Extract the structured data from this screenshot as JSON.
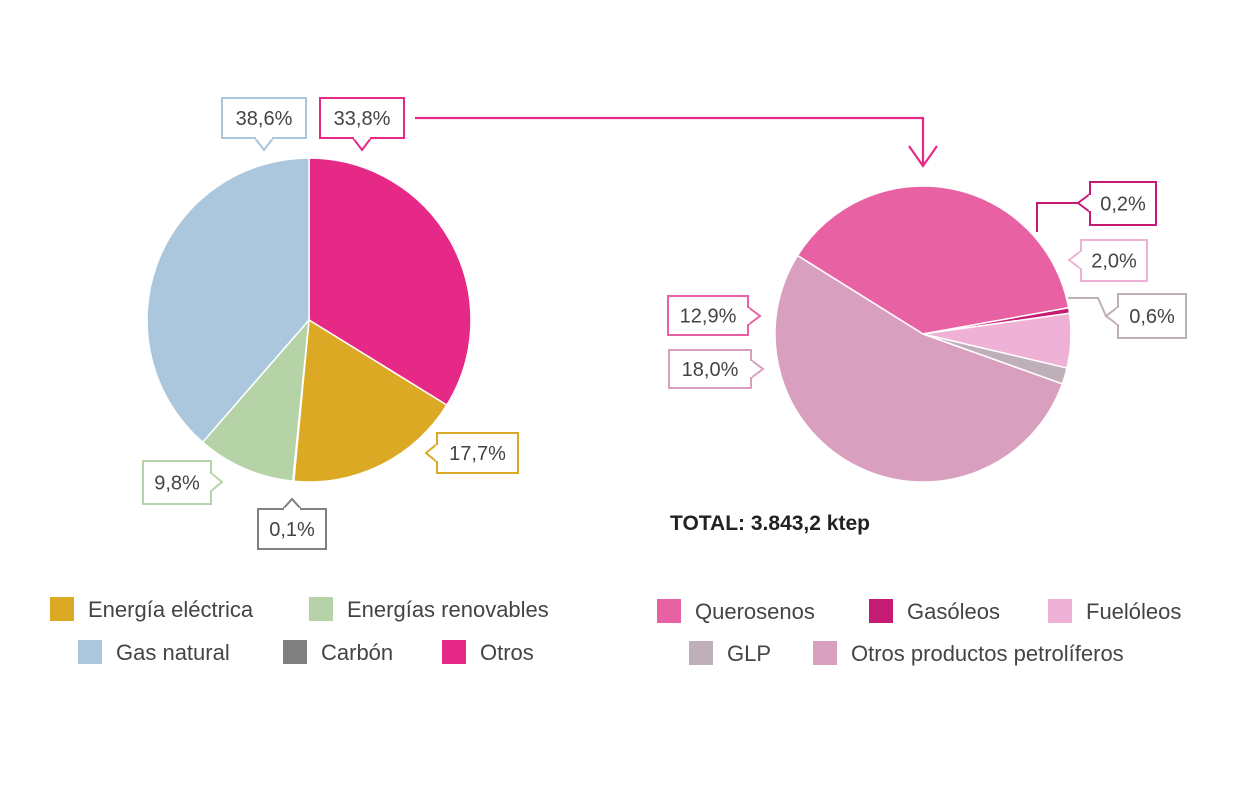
{
  "chart_data": [
    {
      "type": "pie",
      "categories": [
        "Otros",
        "Energía eléctrica",
        "Carbón",
        "Energías renovables",
        "Gas natural"
      ],
      "values": [
        33.8,
        17.7,
        0.1,
        9.8,
        38.6
      ],
      "labels": [
        "33,8%",
        "17,7%",
        "0,1%",
        "9,8%",
        "38,6%"
      ],
      "colors": [
        "#e62987",
        "#dba924",
        "#808080",
        "#b6d3a8",
        "#abc7dd"
      ],
      "legend": {
        "placement": "bottom",
        "rows": [
          [
            {
              "label": "Energía eléctrica",
              "color": "#dba924"
            },
            {
              "label": "Energías renovables",
              "color": "#b6d3a8"
            }
          ],
          [
            {
              "label": "Gas natural",
              "color": "#abc7dd"
            },
            {
              "label": "Carbón",
              "color": "#808080"
            },
            {
              "label": "Otros",
              "color": "#e62987"
            }
          ]
        ]
      }
    },
    {
      "type": "pie",
      "categories": [
        "Querosenos",
        "Gasóleos",
        "Fuelóleos",
        "GLP",
        "Otros productos petrolíferos"
      ],
      "values": [
        12.9,
        0.2,
        2.0,
        0.6,
        18.0
      ],
      "labels": [
        "12,9%",
        "0,2%",
        "2,0%",
        "0,6%",
        "18,0%"
      ],
      "colors": [
        "#e862a3",
        "#c61b75",
        "#efb2d6",
        "#beafb9",
        "#d99fbf"
      ],
      "total": "TOTAL: 3.843,2 ktep",
      "legend": {
        "placement": "bottom",
        "rows": [
          [
            {
              "label": "Querosenos",
              "color": "#e862a3"
            },
            {
              "label": "Gasóleos",
              "color": "#c61b75"
            },
            {
              "label": "Fuelóleos",
              "color": "#efb2d6"
            }
          ],
          [
            {
              "label": "GLP",
              "color": "#beafb9"
            },
            {
              "label": "Otros productos petrolíferos",
              "color": "#d99fbf"
            }
          ]
        ]
      }
    }
  ]
}
